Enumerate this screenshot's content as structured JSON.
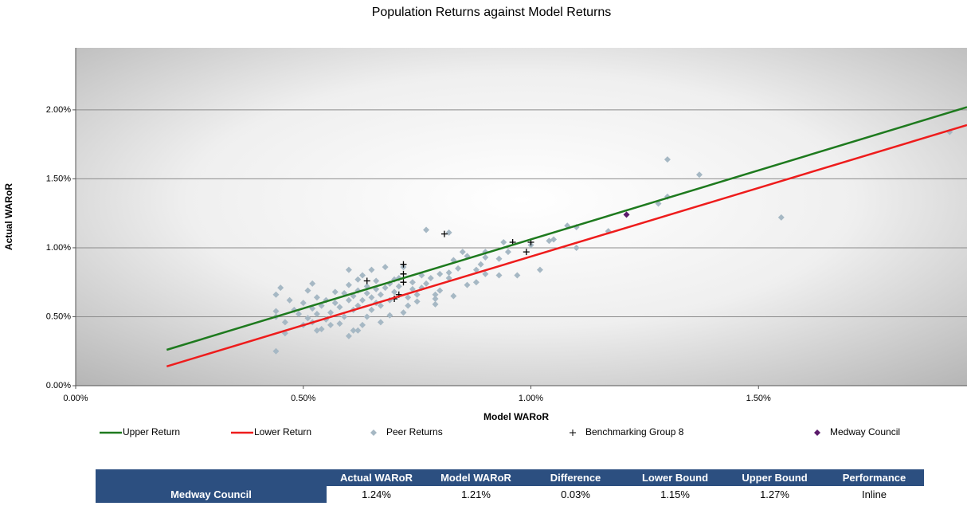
{
  "chart_data": {
    "type": "scatter",
    "title": "Population Returns against Model Returns",
    "x_label": "Model WARoR",
    "y_label": "Actual WARoR",
    "xlim": [
      0,
      1.958
    ],
    "ylim": [
      0,
      2.45
    ],
    "xticks": [
      {
        "value": 0,
        "label": "0.00%"
      },
      {
        "value": 0.5,
        "label": "0.50%"
      },
      {
        "value": 1.0,
        "label": "1.00%"
      },
      {
        "value": 1.5,
        "label": "1.50%"
      }
    ],
    "yticks": [
      {
        "value": 0,
        "label": "0.00%"
      },
      {
        "value": 0.5,
        "label": "0.50%"
      },
      {
        "value": 1.0,
        "label": "1.00%"
      },
      {
        "value": 1.5,
        "label": "1.50%"
      },
      {
        "value": 2.0,
        "label": "2.00%"
      }
    ],
    "grid": true,
    "series": [
      {
        "name": "Upper Return",
        "type": "line",
        "color": "#1e7a1e",
        "x": [
          0.2,
          1.958
        ],
        "values": [
          0.26,
          2.02
        ]
      },
      {
        "name": "Lower Return",
        "type": "line",
        "color": "#ee1c1c",
        "x": [
          0.2,
          1.958
        ],
        "values": [
          0.14,
          1.89
        ]
      },
      {
        "name": "Peer Returns",
        "type": "diamond",
        "color": "#a6b8c4",
        "x": [
          0.44,
          1.3,
          1.37,
          1.55,
          1.92,
          1.3,
          1.28,
          1.17,
          1.1,
          1.08,
          1.1,
          1.02,
          0.97,
          1.04,
          1.05,
          1.0,
          0.94,
          0.95,
          0.93,
          0.9,
          0.9,
          0.89,
          0.88,
          0.88,
          0.85,
          0.86,
          0.84,
          0.83,
          0.82,
          0.82,
          0.8,
          0.8,
          0.79,
          0.79,
          0.77,
          0.82,
          0.78,
          0.77,
          0.76,
          0.76,
          0.75,
          0.74,
          0.74,
          0.73,
          0.73,
          0.72,
          0.71,
          0.71,
          0.7,
          0.7,
          0.69,
          0.69,
          0.68,
          0.68,
          0.67,
          0.67,
          0.66,
          0.66,
          0.66,
          0.65,
          0.65,
          0.65,
          0.64,
          0.64,
          0.64,
          0.63,
          0.63,
          0.63,
          0.62,
          0.62,
          0.62,
          0.61,
          0.61,
          0.61,
          0.6,
          0.6,
          0.6,
          0.59,
          0.59,
          0.58,
          0.58,
          0.57,
          0.57,
          0.56,
          0.56,
          0.55,
          0.55,
          0.54,
          0.54,
          0.53,
          0.53,
          0.52,
          0.52,
          0.51,
          0.51,
          0.5,
          0.5,
          0.49,
          0.48,
          0.47,
          0.46,
          0.46,
          0.45,
          0.44,
          0.44,
          0.44,
          0.52,
          0.53,
          0.6,
          0.62,
          0.67,
          0.69,
          0.72,
          0.75,
          0.79,
          0.83,
          0.86,
          0.9,
          0.93
        ],
        "values": [
          0.25,
          1.64,
          1.53,
          1.22,
          1.84,
          1.37,
          1.32,
          1.12,
          1.15,
          1.16,
          1.0,
          0.84,
          0.8,
          1.05,
          1.06,
          1.02,
          1.04,
          0.97,
          0.92,
          0.93,
          0.97,
          0.88,
          0.84,
          0.75,
          0.97,
          0.94,
          0.85,
          0.91,
          0.82,
          0.78,
          0.81,
          0.69,
          0.63,
          0.59,
          1.13,
          1.11,
          0.78,
          0.74,
          0.8,
          0.71,
          0.66,
          0.75,
          0.7,
          0.64,
          0.58,
          0.86,
          0.78,
          0.72,
          0.77,
          0.68,
          0.74,
          0.62,
          0.86,
          0.71,
          0.66,
          0.58,
          0.76,
          0.7,
          0.6,
          0.84,
          0.64,
          0.55,
          0.72,
          0.67,
          0.5,
          0.8,
          0.62,
          0.44,
          0.77,
          0.69,
          0.58,
          0.65,
          0.55,
          0.4,
          0.84,
          0.73,
          0.62,
          0.67,
          0.5,
          0.57,
          0.45,
          0.68,
          0.6,
          0.53,
          0.44,
          0.62,
          0.48,
          0.58,
          0.41,
          0.52,
          0.64,
          0.46,
          0.56,
          0.69,
          0.49,
          0.6,
          0.44,
          0.52,
          0.55,
          0.62,
          0.46,
          0.38,
          0.71,
          0.66,
          0.54,
          0.5,
          0.74,
          0.4,
          0.36,
          0.4,
          0.46,
          0.51,
          0.53,
          0.61,
          0.66,
          0.65,
          0.73,
          0.81,
          0.8
        ]
      },
      {
        "name": "Benchmarking Group 8",
        "type": "plus",
        "color": "#000000",
        "x": [
          0.64,
          0.72,
          0.72,
          0.71,
          0.7,
          0.81,
          0.96,
          1.0,
          0.99,
          0.72
        ],
        "values": [
          0.76,
          0.88,
          0.81,
          0.66,
          0.63,
          1.1,
          1.04,
          1.04,
          0.97,
          0.75
        ]
      },
      {
        "name": "Medway Council",
        "type": "diamond",
        "color": "#5b1a6b",
        "x": [
          1.21
        ],
        "values": [
          1.24
        ]
      }
    ]
  },
  "table": {
    "headers": [
      "Actual WARoR",
      "Model WARoR",
      "Difference",
      "Lower Bound",
      "Upper Bound",
      "Performance"
    ],
    "rows": [
      [
        "Medway Council",
        "1.24%",
        "1.21%",
        "0.03%",
        "1.15%",
        "1.27%",
        "Inline"
      ]
    ]
  }
}
